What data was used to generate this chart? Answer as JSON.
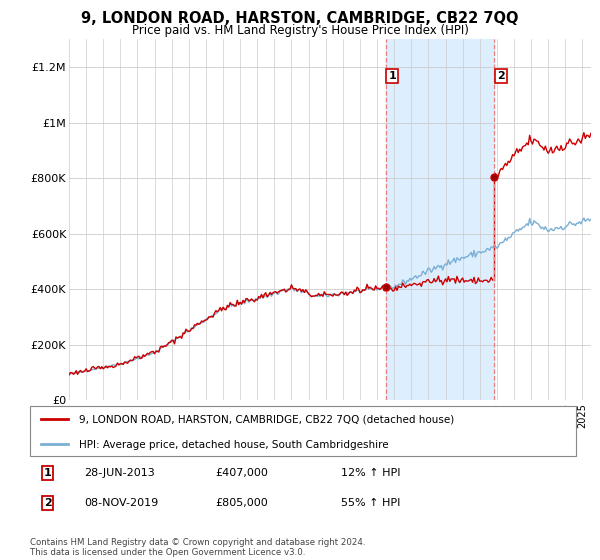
{
  "title": "9, LONDON ROAD, HARSTON, CAMBRIDGE, CB22 7QQ",
  "subtitle": "Price paid vs. HM Land Registry's House Price Index (HPI)",
  "ylabel_ticks": [
    "£0",
    "£200K",
    "£400K",
    "£600K",
    "£800K",
    "£1M",
    "£1.2M"
  ],
  "ytick_vals": [
    0,
    200000,
    400000,
    600000,
    800000,
    1000000,
    1200000
  ],
  "ylim": [
    0,
    1300000
  ],
  "sale1_date": "28-JUN-2013",
  "sale1_price": 407000,
  "sale1_label": "12% ↑ HPI",
  "sale1_year": 2013.5,
  "sale2_date": "08-NOV-2019",
  "sale2_price": 805000,
  "sale2_label": "55% ↑ HPI",
  "sale2_year": 2019.85,
  "legend_line1": "9, LONDON ROAD, HARSTON, CAMBRIDGE, CB22 7QQ (detached house)",
  "legend_line2": "HPI: Average price, detached house, South Cambridgeshire",
  "footnote": "Contains HM Land Registry data © Crown copyright and database right 2024.\nThis data is licensed under the Open Government Licence v3.0.",
  "sale_color": "#cc0000",
  "hpi_color": "#7bafd4",
  "span_color": "#ddeeff",
  "vline_color": "#e88080",
  "xmin": 1995,
  "xmax": 2025.5
}
